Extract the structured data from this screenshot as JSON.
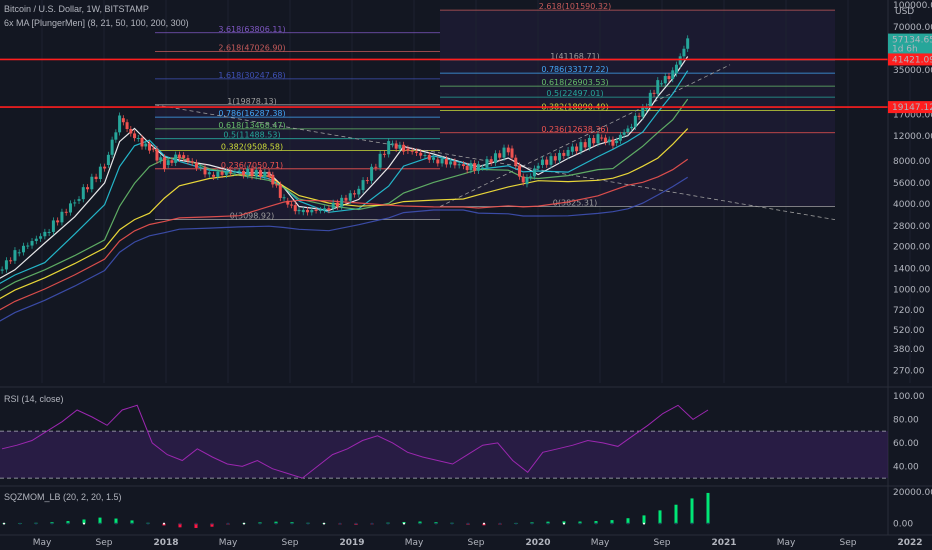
{
  "header": {
    "symbol_line": "Bitcoin / U.S. Dollar, 1W, BITSTAMP",
    "ma_line": "6x MA [PlungerMen] (8, 21, 50, 100, 200, 300)",
    "rsi_title": "RSI (14, close)",
    "sqz_title": "SQZMOM_LB (20, 2, 20, 1.5)"
  },
  "colors": {
    "background": "#131722",
    "up_candle": "#26a69a",
    "down_candle": "#ef5350",
    "resistance_line": "#ff1e1e",
    "rsi_line": "#9c27b0",
    "rsi_band": "#3a2060"
  },
  "chart_data": [
    {
      "type": "candlestick",
      "scale": "log",
      "ylim": [
        220,
        100000
      ],
      "y_ticks": [
        "100000.00",
        "70000.00",
        "35000.00",
        "17000.00",
        "12000.00",
        "8000.00",
        "5600.00",
        "4000.00",
        "2800.00",
        "2000.00",
        "1400.00",
        "1000.00",
        "720.00",
        "520.00",
        "380.00",
        "270.00"
      ],
      "x_ticks": [
        "May",
        "Sep",
        "2018",
        "May",
        "Sep",
        "2019",
        "May",
        "Sep",
        "2020",
        "May",
        "Sep",
        "2021",
        "May",
        "Sep",
        "2022"
      ],
      "price_labels": [
        {
          "text": "57134.65",
          "value": 57134.65,
          "color": "#26a69a"
        },
        {
          "text": "1d 6h",
          "value": 49500,
          "color": "#26a69a"
        },
        {
          "text": "41421.09",
          "value": 41421.09,
          "color": "#ff1e1e"
        },
        {
          "text": "19147.12",
          "value": 19147.12,
          "color": "#ff1e1e"
        }
      ],
      "horizontal_lines": [
        41421.09,
        19147.12
      ],
      "fib_left": [
        {
          "text": "2.618(47026.90)",
          "value": 47026.9,
          "color": "#c55a5a"
        },
        {
          "text": "3.618(63806.11)",
          "value": 63806.11,
          "color": "#7e57c2"
        },
        {
          "text": "1.618(30247.68)",
          "value": 30247.68,
          "color": "#3f51b5"
        },
        {
          "text": "1(19878.13)",
          "value": 19878.13,
          "color": "#9e9e9e"
        },
        {
          "text": "0.786(16287.38)",
          "value": 16287.38,
          "color": "#42a5f5"
        },
        {
          "text": "0.618(13468.47)",
          "value": 13468.47,
          "color": "#66bb6a"
        },
        {
          "text": "0.5(11488.53)",
          "value": 11488.53,
          "color": "#26a69a"
        },
        {
          "text": "0.382(9508.58)",
          "value": 9508.58,
          "color": "#cddc39"
        },
        {
          "text": "0.236(7050.71)",
          "value": 7050.71,
          "color": "#ef5350"
        },
        {
          "text": "0(3098.92)",
          "value": 3098.92,
          "color": "#9e9e9e"
        }
      ],
      "fib_right": [
        {
          "text": "2.618(101590.32)",
          "value": 92000,
          "color": "#c55a5a"
        },
        {
          "text": "1(41168.71)",
          "value": 41168.71,
          "color": "#9e9e9e"
        },
        {
          "text": "0.786(33177.22)",
          "value": 33177.22,
          "color": "#42a5f5"
        },
        {
          "text": "0.618(26903.53)",
          "value": 26903.53,
          "color": "#66bb6a"
        },
        {
          "text": "0.5(22497.01)",
          "value": 22497.01,
          "color": "#26a69a"
        },
        {
          "text": "0.382(18090.49)",
          "value": 18090.49,
          "color": "#cddc39"
        },
        {
          "text": "0.236(12638.36)",
          "value": 12638.36,
          "color": "#ef5350"
        },
        {
          "text": "0(3825.31)",
          "value": 3825.31,
          "color": "#9e9e9e"
        }
      ],
      "series_price": [
        [
          "2017-03",
          1050
        ],
        [
          "2017-05",
          1800
        ],
        [
          "2017-07",
          2500
        ],
        [
          "2017-09",
          4200
        ],
        [
          "2017-11",
          7500
        ],
        [
          "2017-12",
          16000
        ],
        [
          "2018-01",
          11500
        ],
        [
          "2018-02",
          9800
        ],
        [
          "2018-03",
          7500
        ],
        [
          "2018-04",
          8800
        ],
        [
          "2018-06",
          6400
        ],
        [
          "2018-08",
          6800
        ],
        [
          "2018-10",
          6400
        ],
        [
          "2018-11",
          4200
        ],
        [
          "2018-12",
          3500
        ],
        [
          "2019-02",
          3700
        ],
        [
          "2019-04",
          5000
        ],
        [
          "2019-06",
          10500
        ],
        [
          "2019-07",
          9800
        ],
        [
          "2019-09",
          8200
        ],
        [
          "2019-11",
          7400
        ],
        [
          "2019-12",
          7200
        ],
        [
          "2020-02",
          9800
        ],
        [
          "2020-03",
          5500
        ],
        [
          "2020-04",
          7500
        ],
        [
          "2020-06",
          9300
        ],
        [
          "2020-08",
          11700
        ],
        [
          "2020-09",
          10700
        ],
        [
          "2020-10",
          13600
        ],
        [
          "2020-11",
          18500
        ],
        [
          "2020-12",
          28000
        ],
        [
          "2021-01",
          33000
        ],
        [
          "2021-02",
          57134
        ]
      ]
    },
    {
      "type": "line",
      "title": "RSI (14, close)",
      "y_ticks": [
        "100.00",
        "80.00",
        "60.00",
        "40.00"
      ],
      "ylim": [
        25,
        105
      ],
      "bands": [
        70,
        30
      ],
      "values": [
        55,
        58,
        62,
        70,
        78,
        88,
        82,
        75,
        88,
        92,
        60,
        50,
        45,
        55,
        48,
        42,
        40,
        45,
        38,
        34,
        30,
        40,
        50,
        55,
        62,
        66,
        60,
        52,
        48,
        45,
        42,
        50,
        58,
        60,
        45,
        35,
        52,
        55,
        58,
        62,
        60,
        57,
        66,
        75,
        85,
        92,
        80,
        88
      ]
    },
    {
      "type": "bar",
      "title": "SQZMOM_LB (20, 2, 20, 1.5)",
      "y_ticks": [
        "20000.00",
        "0.00"
      ],
      "ylim": [
        -6000,
        22000
      ],
      "values": [
        200,
        300,
        500,
        900,
        1600,
        2600,
        3800,
        3200,
        2000,
        500,
        -1200,
        -2400,
        -2800,
        -2000,
        -600,
        400,
        800,
        1200,
        900,
        500,
        300,
        -500,
        -800,
        -400,
        600,
        1000,
        1300,
        900,
        500,
        -700,
        -1100,
        -600,
        400,
        800,
        1200,
        1400,
        1300,
        1600,
        2200,
        3400,
        5200,
        8400,
        12000,
        16000,
        19500
      ]
    }
  ]
}
